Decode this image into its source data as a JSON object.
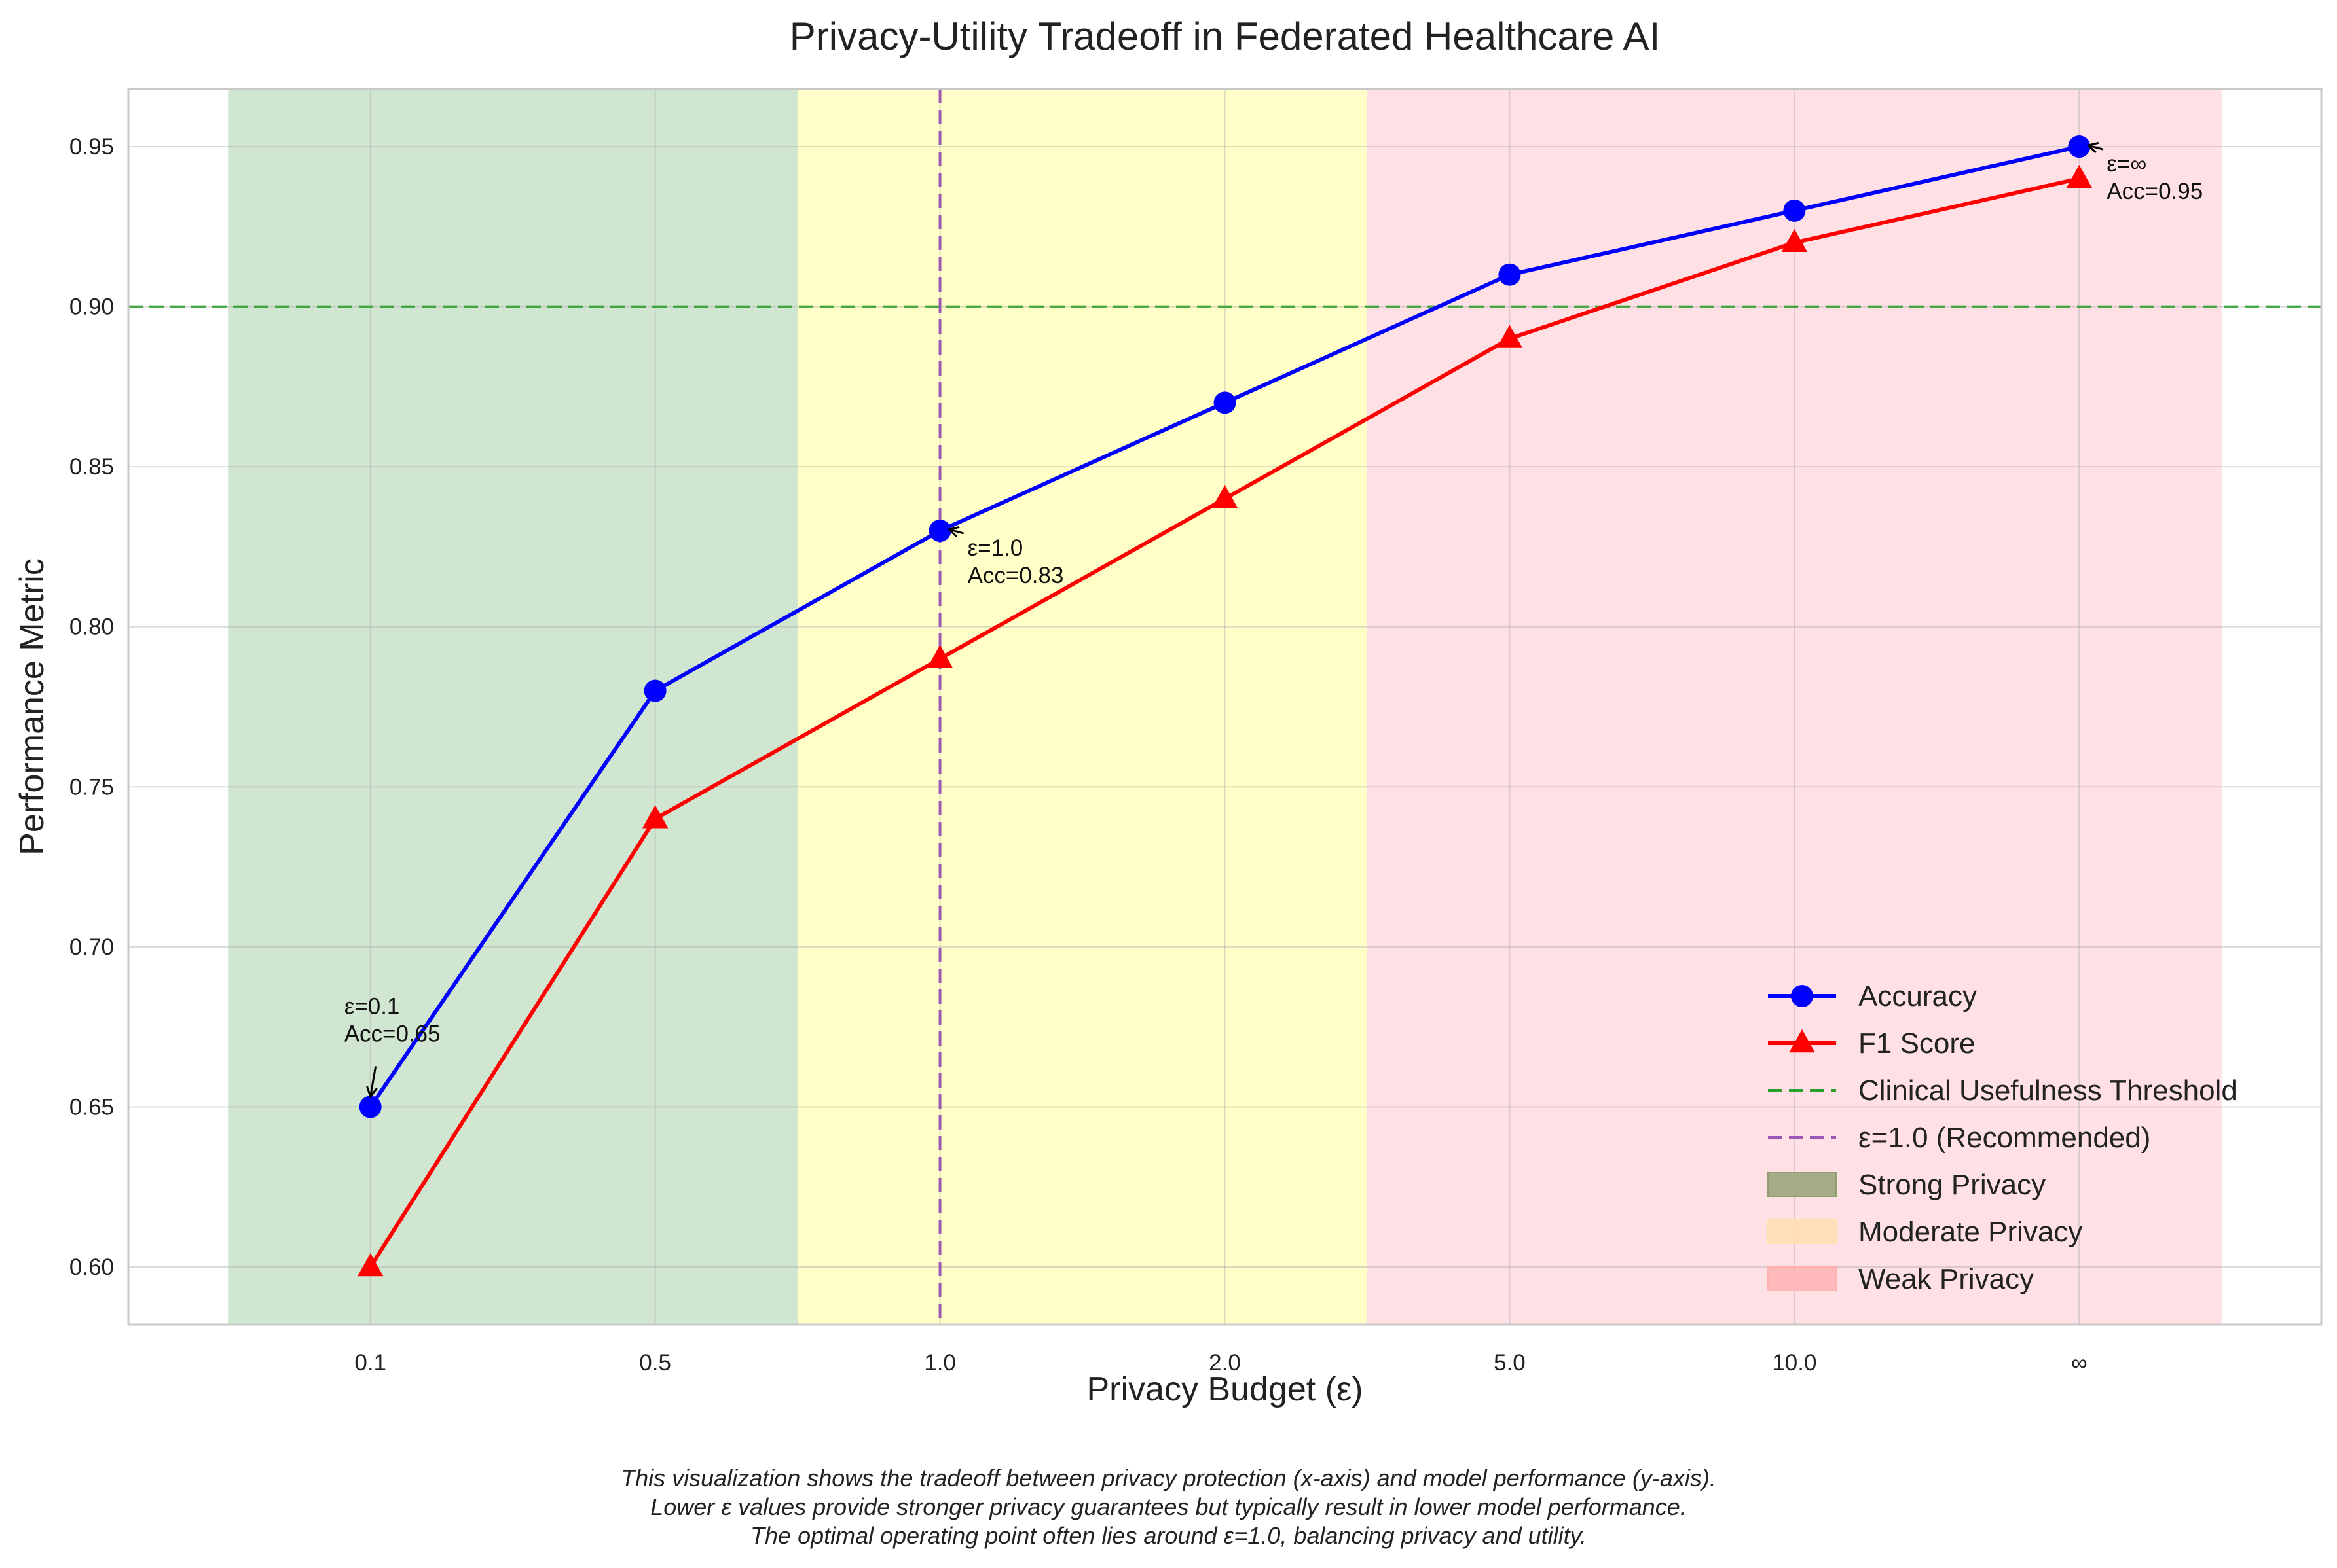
{
  "chart_data": {
    "type": "line",
    "title": "Privacy-Utility Tradeoff in Federated Healthcare AI",
    "xlabel": "Privacy Budget (ε)",
    "ylabel": "Performance Metric",
    "categories": [
      "0.1",
      "0.5",
      "1.0",
      "2.0",
      "5.0",
      "10.0",
      "∞"
    ],
    "ylim": [
      0.582,
      0.968
    ],
    "yticks": [
      "0.60",
      "0.65",
      "0.70",
      "0.75",
      "0.80",
      "0.85",
      "0.90",
      "0.95"
    ],
    "grid": true,
    "series": [
      {
        "name": "Accuracy",
        "values": [
          0.65,
          0.78,
          0.83,
          0.87,
          0.91,
          0.93,
          0.95
        ],
        "color": "#0000ff",
        "marker": "circle"
      },
      {
        "name": "F1 Score",
        "values": [
          0.6,
          0.74,
          0.79,
          0.84,
          0.89,
          0.92,
          0.94
        ],
        "color": "#ff0000",
        "marker": "triangle"
      }
    ],
    "threshold": {
      "name": "Clinical Usefulness Threshold",
      "value": 0.9,
      "color": "#2ca02c"
    },
    "recommended": {
      "name": "ε=1.0 (Recommended)",
      "x": "1.0",
      "color": "#9b59b6"
    },
    "regions": [
      {
        "name": "Strong Privacy",
        "from": -0.5,
        "to": 1.5,
        "color": "#2e8b2e",
        "legend_color": "#8f9f6f"
      },
      {
        "name": "Moderate Privacy",
        "from": 1.5,
        "to": 3.5,
        "color": "#ffff99",
        "legend_color": "#ffe0b0"
      },
      {
        "name": "Weak Privacy",
        "from": 3.5,
        "to": 6.5,
        "color": "#ffb6c1",
        "legend_color": "#ffb0b0"
      }
    ],
    "annotations": [
      {
        "index": 0,
        "lines": [
          "ε=0.1",
          "Acc=0.65"
        ]
      },
      {
        "index": 2,
        "lines": [
          "ε=1.0",
          "Acc=0.83"
        ]
      },
      {
        "index": 6,
        "lines": [
          "ε=∞",
          "Acc=0.95"
        ]
      }
    ],
    "legend_position": "lower-right"
  },
  "caption": {
    "line1": "This visualization shows the tradeoff between privacy protection (x-axis) and model performance (y-axis).",
    "line2": "Lower ε values provide stronger privacy guarantees but typically result in lower model performance.",
    "line3": "The optimal operating point often lies around ε=1.0, balancing privacy and utility."
  }
}
